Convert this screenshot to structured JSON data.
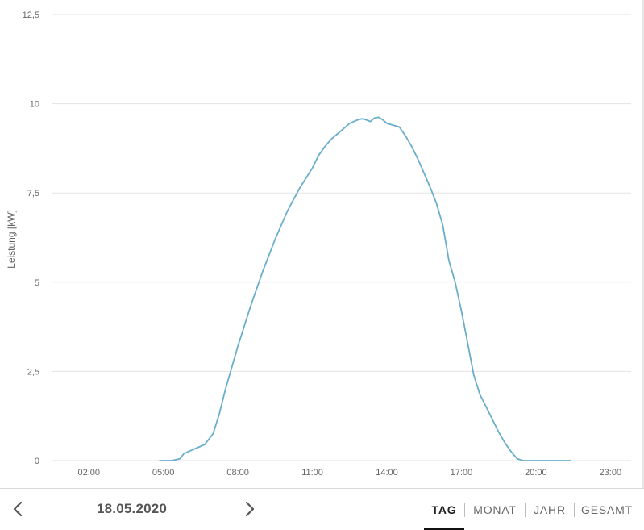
{
  "chart_data": {
    "type": "line",
    "title": "",
    "xlabel": "",
    "ylabel": "Leistung [kW]",
    "ylim": [
      0,
      12.5
    ],
    "xlim": [
      "00:30",
      "23:50"
    ],
    "grid": true,
    "y_ticks": [
      "0",
      "2,5",
      "5",
      "7,5",
      "10",
      "12,5"
    ],
    "x_ticks": [
      "02:00",
      "05:00",
      "08:00",
      "11:00",
      "14:00",
      "17:00",
      "20:00",
      "23:00"
    ],
    "series": [
      {
        "color": "#6aaecb",
        "x": [
          "04:50",
          "05:20",
          "05:40",
          "05:50",
          "06:00",
          "06:20",
          "06:40",
          "07:00",
          "07:15",
          "07:30",
          "07:45",
          "08:00",
          "08:30",
          "09:00",
          "09:30",
          "10:00",
          "10:30",
          "11:00",
          "11:15",
          "11:30",
          "11:45",
          "12:00",
          "12:15",
          "12:30",
          "12:40",
          "12:50",
          "13:00",
          "13:10",
          "13:20",
          "13:30",
          "13:40",
          "13:50",
          "14:00",
          "14:15",
          "14:30",
          "14:45",
          "15:00",
          "15:15",
          "15:30",
          "15:45",
          "16:00",
          "16:15",
          "16:30",
          "16:45",
          "17:00",
          "17:10",
          "17:20",
          "17:30",
          "17:45",
          "18:00",
          "18:15",
          "18:30",
          "18:45",
          "19:00",
          "19:15",
          "19:30",
          "19:45",
          "20:00",
          "20:15",
          "20:30",
          "20:40",
          "21:00",
          "21:25"
        ],
        "values": [
          0,
          0,
          0.05,
          0.2,
          0.25,
          0.35,
          0.45,
          0.75,
          1.3,
          2.0,
          2.6,
          3.2,
          4.3,
          5.3,
          6.2,
          7.0,
          7.65,
          8.2,
          8.55,
          8.8,
          9.0,
          9.15,
          9.3,
          9.45,
          9.5,
          9.55,
          9.58,
          9.55,
          9.5,
          9.6,
          9.62,
          9.55,
          9.45,
          9.4,
          9.35,
          9.1,
          8.8,
          8.45,
          8.05,
          7.65,
          7.2,
          6.6,
          5.6,
          5.0,
          4.2,
          3.6,
          3.0,
          2.4,
          1.85,
          1.5,
          1.15,
          0.8,
          0.5,
          0.25,
          0.05,
          0,
          0,
          0,
          0,
          0,
          0,
          0,
          0
        ]
      }
    ]
  },
  "footer": {
    "date": "18.05.2020",
    "prev_icon": "chevron-left-icon",
    "next_icon": "chevron-right-icon",
    "tabs": [
      {
        "label": "TAG",
        "active": true
      },
      {
        "label": "MONAT",
        "active": false
      },
      {
        "label": "JAHR",
        "active": false
      },
      {
        "label": "GESAMT",
        "active": false
      }
    ]
  }
}
